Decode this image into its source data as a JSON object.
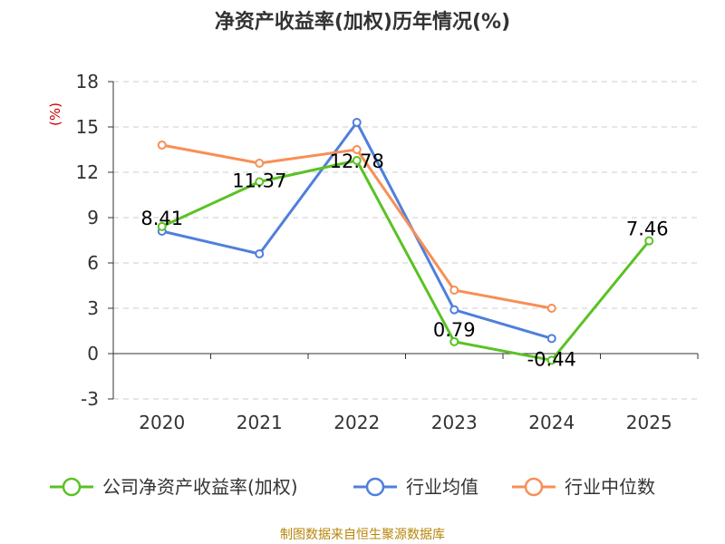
{
  "chart_data": {
    "type": "line",
    "title": "净资产收益率(加权)历年情况(%)",
    "ylabel": "(%)",
    "xlabel": "",
    "categories": [
      "2020",
      "2021",
      "2022",
      "2023",
      "2024",
      "2025"
    ],
    "ylim": [
      -3,
      18
    ],
    "yticks": [
      -3,
      0,
      3,
      6,
      9,
      12,
      15,
      18
    ],
    "grid": true,
    "legend_position": "bottom",
    "series": [
      {
        "name": "公司净资产收益率(加权)",
        "color": "#5ac224",
        "values": [
          8.41,
          11.37,
          12.78,
          0.79,
          -0.44,
          7.46
        ],
        "labels": [
          "8.41",
          "11.37",
          "12.78",
          "0.79",
          "-0.44",
          "7.46"
        ]
      },
      {
        "name": "行业均值",
        "color": "#4f7fdc",
        "values": [
          8.1,
          6.6,
          15.3,
          2.9,
          1.0,
          null
        ]
      },
      {
        "name": "行业中位数",
        "color": "#f78f56",
        "values": [
          13.8,
          12.6,
          13.5,
          4.2,
          3.0,
          null
        ]
      }
    ]
  },
  "source": "制图数据来自恒生聚源数据库"
}
